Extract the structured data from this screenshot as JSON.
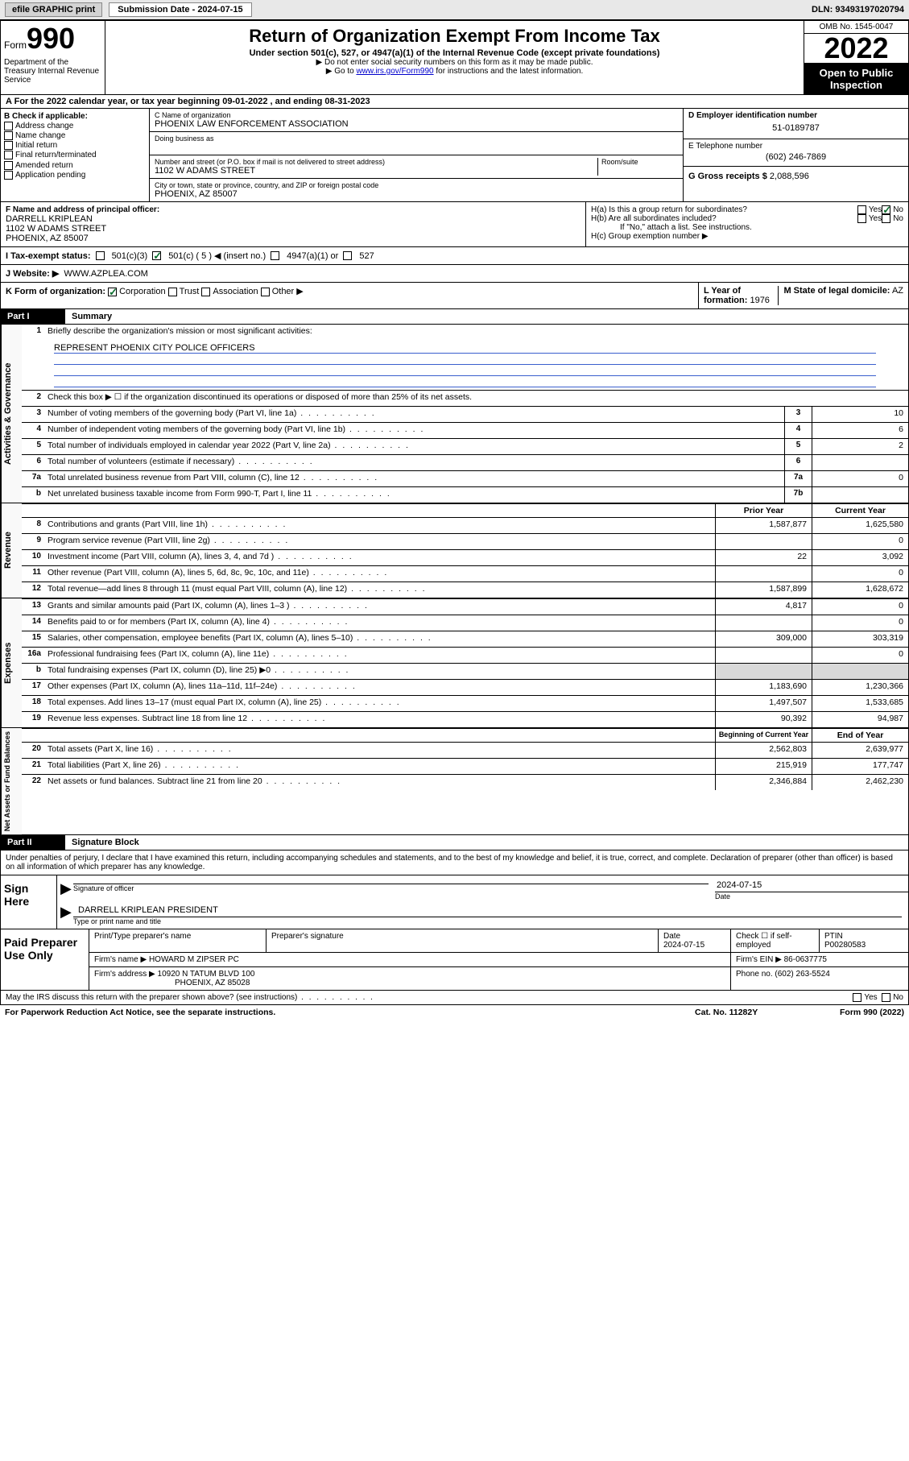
{
  "topbar": {
    "efile": "efile GRAPHIC print",
    "sublabel": "Submission Date - 2024-07-15",
    "dln": "DLN: 93493197020794"
  },
  "header": {
    "form_label": "Form",
    "form_num": "990",
    "title": "Return of Organization Exempt From Income Tax",
    "subtitle": "Under section 501(c), 527, or 4947(a)(1) of the Internal Revenue Code (except private foundations)",
    "note1": "▶ Do not enter social security numbers on this form as it may be made public.",
    "note2_pre": "▶ Go to ",
    "note2_link": "www.irs.gov/Form990",
    "note2_post": " for instructions and the latest information.",
    "omb": "OMB No. 1545-0047",
    "year": "2022",
    "otp": "Open to Public Inspection",
    "dept": "Department of the Treasury Internal Revenue Service"
  },
  "row_a": "For the 2022 calendar year, or tax year beginning 09-01-2022    , and ending 08-31-2023",
  "box_b": {
    "label": "B Check if applicable:",
    "items": [
      "Address change",
      "Name change",
      "Initial return",
      "Final return/terminated",
      "Amended return",
      "Application pending"
    ]
  },
  "box_c": {
    "name_label": "C Name of organization",
    "name": "PHOENIX LAW ENFORCEMENT ASSOCIATION",
    "dba_label": "Doing business as",
    "addr_label": "Number and street (or P.O. box if mail is not delivered to street address)",
    "room_label": "Room/suite",
    "addr": "1102 W ADAMS STREET",
    "city_label": "City or town, state or province, country, and ZIP or foreign postal code",
    "city": "PHOENIX, AZ  85007"
  },
  "box_d": {
    "label": "D Employer identification number",
    "value": "51-0189787"
  },
  "box_e": {
    "label": "E Telephone number",
    "value": "(602) 246-7869"
  },
  "box_g": {
    "label": "G Gross receipts $",
    "value": "2,088,596"
  },
  "box_f": {
    "label": "F  Name and address of principal officer:",
    "name": "DARRELL KRIPLEAN",
    "addr1": "1102 W ADAMS STREET",
    "addr2": "PHOENIX, AZ  85007"
  },
  "box_h": {
    "a": "H(a)  Is this a group return for subordinates?",
    "b": "H(b)  Are all subordinates included?",
    "binote": "If \"No,\" attach a list. See instructions.",
    "c": "H(c)  Group exemption number ▶",
    "yes": "Yes",
    "no": "No"
  },
  "row_i": {
    "label": "I    Tax-exempt status:",
    "opt1": "501(c)(3)",
    "opt2": "501(c) ( 5 ) ◀ (insert no.)",
    "opt3": "4947(a)(1) or",
    "opt4": "527"
  },
  "row_j": {
    "label": "J    Website: ▶",
    "value": "WWW.AZPLEA.COM"
  },
  "row_k": {
    "label": "K Form of organization:",
    "opts": [
      "Corporation",
      "Trust",
      "Association",
      "Other ▶"
    ]
  },
  "row_l": {
    "label": "L Year of formation:",
    "value": "1976"
  },
  "row_m": {
    "label": "M State of legal domicile:",
    "value": "AZ"
  },
  "part1": {
    "title": "Summary"
  },
  "q1": {
    "label": "Briefly describe the organization's mission or most significant activities:",
    "text": "REPRESENT PHOENIX CITY POLICE OFFICERS"
  },
  "q2": "Check this box ▶ ☐  if the organization discontinued its operations or disposed of more than 25% of its net assets.",
  "lines_gov": [
    {
      "n": "3",
      "d": "Number of voting members of the governing body (Part VI, line 1a)",
      "box": "3",
      "v": "10"
    },
    {
      "n": "4",
      "d": "Number of independent voting members of the governing body (Part VI, line 1b)",
      "box": "4",
      "v": "6"
    },
    {
      "n": "5",
      "d": "Total number of individuals employed in calendar year 2022 (Part V, line 2a)",
      "box": "5",
      "v": "2"
    },
    {
      "n": "6",
      "d": "Total number of volunteers (estimate if necessary)",
      "box": "6",
      "v": ""
    },
    {
      "n": "7a",
      "d": "Total unrelated business revenue from Part VIII, column (C), line 12",
      "box": "7a",
      "v": "0"
    },
    {
      "n": "b",
      "d": "Net unrelated business taxable income from Form 990-T, Part I, line 11",
      "box": "7b",
      "v": ""
    }
  ],
  "col_headers": {
    "py": "Prior Year",
    "cy": "Current Year"
  },
  "lines_rev": [
    {
      "n": "8",
      "d": "Contributions and grants (Part VIII, line 1h)",
      "py": "1,587,877",
      "cy": "1,625,580"
    },
    {
      "n": "9",
      "d": "Program service revenue (Part VIII, line 2g)",
      "py": "",
      "cy": "0"
    },
    {
      "n": "10",
      "d": "Investment income (Part VIII, column (A), lines 3, 4, and 7d )",
      "py": "22",
      "cy": "3,092"
    },
    {
      "n": "11",
      "d": "Other revenue (Part VIII, column (A), lines 5, 6d, 8c, 9c, 10c, and 11e)",
      "py": "",
      "cy": "0"
    },
    {
      "n": "12",
      "d": "Total revenue—add lines 8 through 11 (must equal Part VIII, column (A), line 12)",
      "py": "1,587,899",
      "cy": "1,628,672"
    }
  ],
  "lines_exp": [
    {
      "n": "13",
      "d": "Grants and similar amounts paid (Part IX, column (A), lines 1–3 )",
      "py": "4,817",
      "cy": "0"
    },
    {
      "n": "14",
      "d": "Benefits paid to or for members (Part IX, column (A), line 4)",
      "py": "",
      "cy": "0"
    },
    {
      "n": "15",
      "d": "Salaries, other compensation, employee benefits (Part IX, column (A), lines 5–10)",
      "py": "309,000",
      "cy": "303,319"
    },
    {
      "n": "16a",
      "d": "Professional fundraising fees (Part IX, column (A), line 11e)",
      "py": "",
      "cy": "0"
    },
    {
      "n": "b",
      "d": "Total fundraising expenses (Part IX, column (D), line 25) ▶0",
      "py": "shaded",
      "cy": "shaded"
    },
    {
      "n": "17",
      "d": "Other expenses (Part IX, column (A), lines 11a–11d, 11f–24e)",
      "py": "1,183,690",
      "cy": "1,230,366"
    },
    {
      "n": "18",
      "d": "Total expenses. Add lines 13–17 (must equal Part IX, column (A), line 25)",
      "py": "1,497,507",
      "cy": "1,533,685"
    },
    {
      "n": "19",
      "d": "Revenue less expenses. Subtract line 18 from line 12",
      "py": "90,392",
      "cy": "94,987"
    }
  ],
  "col_headers2": {
    "py": "Beginning of Current Year",
    "cy": "End of Year"
  },
  "lines_net": [
    {
      "n": "20",
      "d": "Total assets (Part X, line 16)",
      "py": "2,562,803",
      "cy": "2,639,977"
    },
    {
      "n": "21",
      "d": "Total liabilities (Part X, line 26)",
      "py": "215,919",
      "cy": "177,747"
    },
    {
      "n": "22",
      "d": "Net assets or fund balances. Subtract line 21 from line 20",
      "py": "2,346,884",
      "cy": "2,462,230"
    }
  ],
  "vert": {
    "gov": "Activities & Governance",
    "rev": "Revenue",
    "exp": "Expenses",
    "net": "Net Assets or Fund Balances"
  },
  "part2": {
    "title": "Signature Block"
  },
  "declaration": "Under penalties of perjury, I declare that I have examined this return, including accompanying schedules and statements, and to the best of my knowledge and belief, it is true, correct, and complete. Declaration of preparer (other than officer) is based on all information of which preparer has any knowledge.",
  "sign": {
    "here": "Sign Here",
    "sig_off": "Signature of officer",
    "date": "2024-07-15",
    "date_label": "Date",
    "name": "DARRELL KRIPLEAN  PRESIDENT",
    "name_label": "Type or print name and title"
  },
  "preparer": {
    "title": "Paid Preparer Use Only",
    "h1": "Print/Type preparer's name",
    "h2": "Preparer's signature",
    "h3": "Date",
    "h3v": "2024-07-15",
    "h4": "Check ☐ if self-employed",
    "h5": "PTIN",
    "h5v": "P00280583",
    "firm_label": "Firm's name    ▶",
    "firm": "HOWARD M ZIPSER PC",
    "ein_label": "Firm's EIN ▶",
    "ein": "86-0637775",
    "addr_label": "Firm's address ▶",
    "addr1": "10920 N TATUM BLVD 100",
    "addr2": "PHOENIX, AZ  85028",
    "phone_label": "Phone no.",
    "phone": "(602) 263-5524"
  },
  "discuss": {
    "q": "May the IRS discuss this return with the preparer shown above? (see instructions)",
    "yes": "Yes",
    "no": "No"
  },
  "footer": {
    "notice": "For Paperwork Reduction Act Notice, see the separate instructions.",
    "cat": "Cat. No. 11282Y",
    "form": "Form 990 (2022)"
  }
}
